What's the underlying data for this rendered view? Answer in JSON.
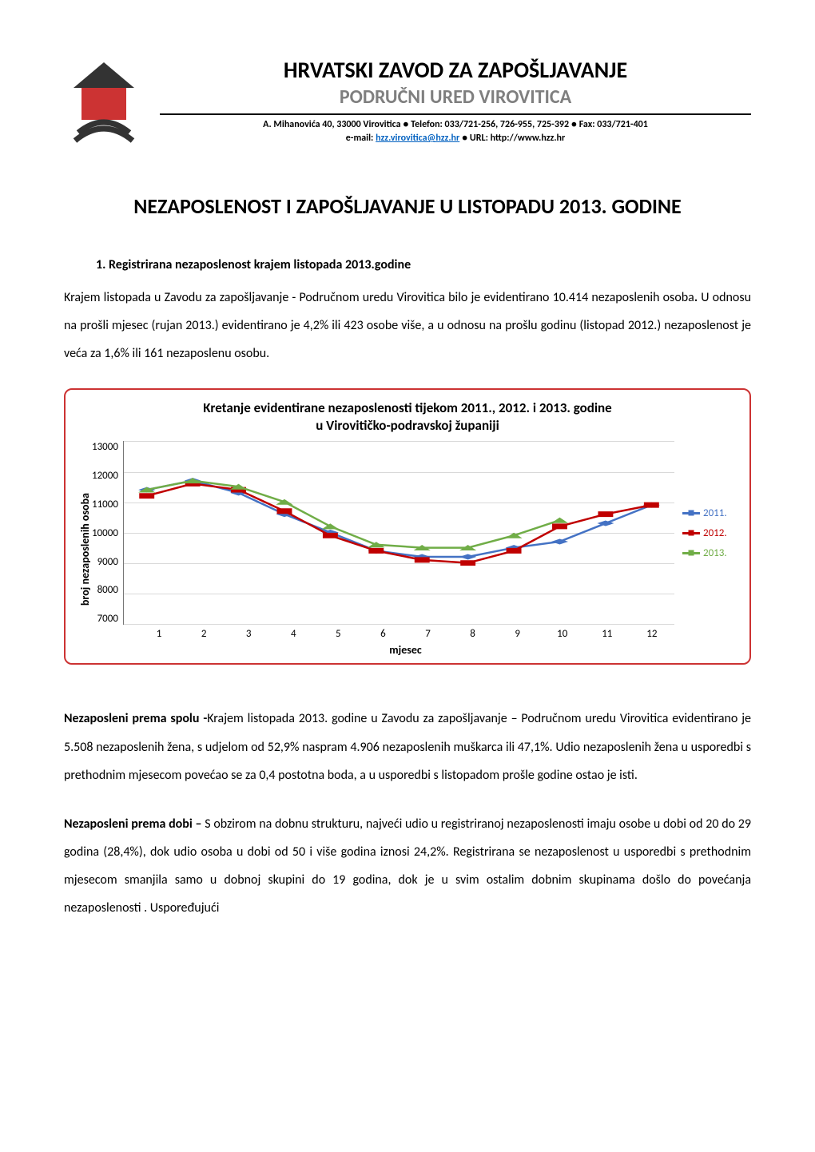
{
  "header": {
    "org_title": "HRVATSKI ZAVOD ZA ZAPOŠLJAVANJE",
    "org_subtitle": "PODRUČNI URED VIROVITICA",
    "contact_line1_pre": "A. Mihanovića 40, 33000 Virovitica ● Telefon: 033/721-256, 726-955, 725-392 ● Fax: 033/721-401",
    "contact_email_label": "e-mail: ",
    "contact_email": "hzz.virovitica@hzz.hr",
    "contact_url_label": " ● URL: http://www.hzz.hr",
    "logo": {
      "house_fill": "#cc3333",
      "roof_fill": "#333333",
      "arc_stroke": "#333333"
    }
  },
  "document": {
    "title": "NEZAPOSLENOST I ZAPOŠLJAVANJE U LISTOPADU 2013. GODINE",
    "section1_heading": "1.   Registrirana nezaposlenost krajem listopada 2013.godine",
    "p1_a": " Krajem listopada u Zavodu za zapošljavanje - Područnom uredu Virovitica bilo je evidentirano 10.414 nezaposlenih osoba",
    "p1_b": ". ",
    "p1_c": "U odnosu na prošli mjesec (rujan 2013.) evidentirano je 4,2% ili 423 osobe više, a u odnosu na prošlu godinu (listopad 2012.) nezaposlenost je veća za 1,6% ili 161 nezaposlenu osobu.",
    "p2_lead": "Nezaposleni  prema  spolu    -",
    "p2_body": "Krajem  listopada  2013.  godine  u  Zavodu  za  zapošljavanje  –  Područnom uredu   Virovitica     evidentirano   je   5.508   nezaposlenih   žena,   s   udjelom   od   52,9%   naspram   4.906 nezaposlenih muškarca ili 47,1%. Udio nezaposlenih žena u usporedbi s prethodnim mjesecom povećao se za 0,4 postotna boda, a u usporedbi s listopadom prošle godine  ostao je isti.",
    "p3_lead": "Nezaposleni  prema  dobi  – ",
    "p3_body": "S  obzirom  na  dobnu  strukturu,  najveći  udio  u  registriranoj  nezaposlenosti imaju osobe u dobi od 20 do 29 godina (28,4%), dok udio osoba u dobi od 50 i više godina iznosi 24,2%. Registrirana se nezaposlenost  u usporedbi s prethodnim mjesecom smanjila samo u dobnoj skupini do 19 godina, dok je u svim ostalim dobnim skupinama došlo do povećanja nezaposlenosti . Uspoređujući"
  },
  "chart": {
    "type": "line",
    "title_line1": "Kretanje evidentirane nezaposlenosti tijekom 2011., 2012. i 2013. godine",
    "title_line2": "u Virovitičko-podravskoj županiji",
    "y_label": "broj nezaposlenih osoba",
    "x_label": "mjesec",
    "border_color": "#cc3333",
    "background_color": "#ffffff",
    "grid_color": "#d9d9d9",
    "axis_color": "#777777",
    "ylim": [
      7000,
      13000
    ],
    "ytick_step": 1000,
    "yticks": [
      "13000",
      "12000",
      "11000",
      "10000",
      "9000",
      "8000",
      "7000"
    ],
    "xticks": [
      "1",
      "2",
      "3",
      "4",
      "5",
      "6",
      "7",
      "8",
      "9",
      "10",
      "11",
      "12"
    ],
    "line_width": 2.5,
    "marker_size": 7,
    "series": [
      {
        "name": "2011.",
        "color": "#4472c4",
        "marker": "diamond",
        "values": [
          11400,
          11700,
          11300,
          10600,
          10000,
          9400,
          9200,
          9200,
          9500,
          9700,
          10300,
          10900
        ]
      },
      {
        "name": "2012.",
        "color": "#c00000",
        "marker": "square",
        "values": [
          11200,
          11600,
          11400,
          10700,
          9900,
          9400,
          9100,
          9000,
          9400,
          10200,
          10600,
          10900
        ]
      },
      {
        "name": "2013.",
        "color": "#70ad47",
        "marker": "triangle",
        "values": [
          11400,
          11700,
          11500,
          11000,
          10200,
          9600,
          9500,
          9500,
          9900,
          10400
        ]
      }
    ],
    "legend_items": [
      "2011.",
      "2012.",
      "2013."
    ]
  }
}
